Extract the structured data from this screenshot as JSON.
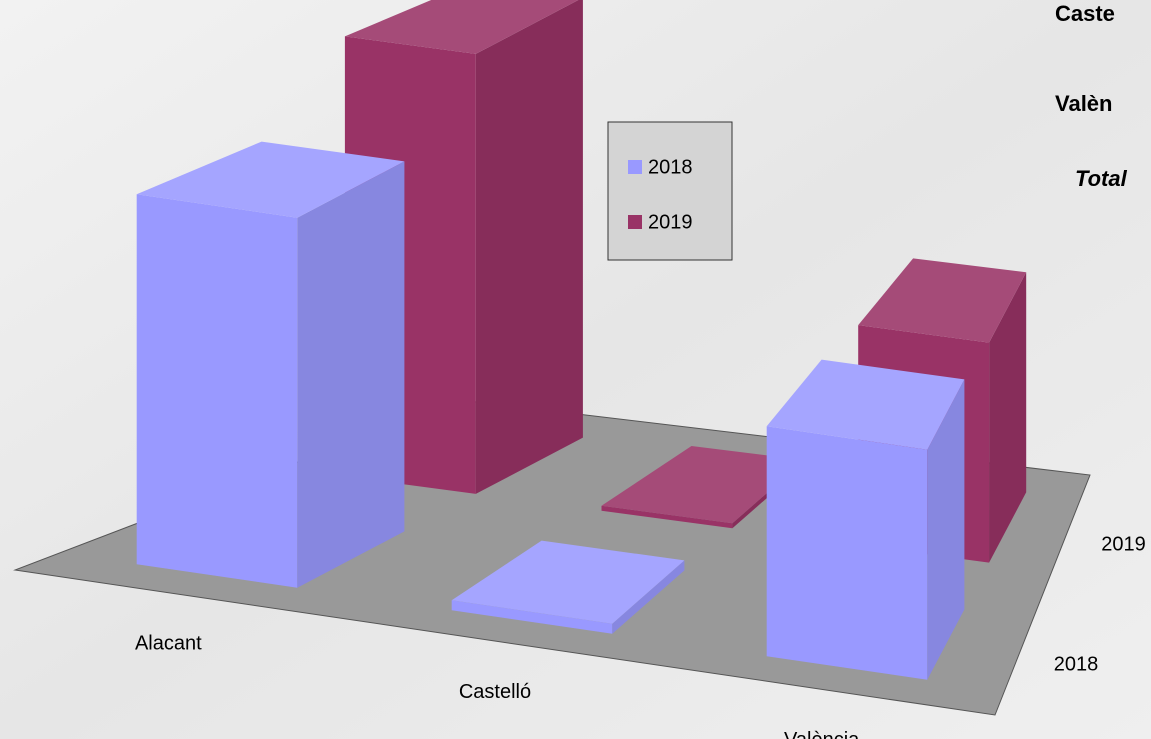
{
  "chart_data": {
    "type": "bar3d",
    "categories": [
      "Alacant",
      "Castelló",
      "València"
    ],
    "series": [
      {
        "name": "2018",
        "color": "#9999ff",
        "values": [
          37,
          1,
          23
        ]
      },
      {
        "name": "2019",
        "color": "#993366",
        "values": [
          44,
          0.5,
          22
        ]
      }
    ],
    "side_labels": [
      "Caste",
      "Valèn",
      "Total"
    ]
  }
}
